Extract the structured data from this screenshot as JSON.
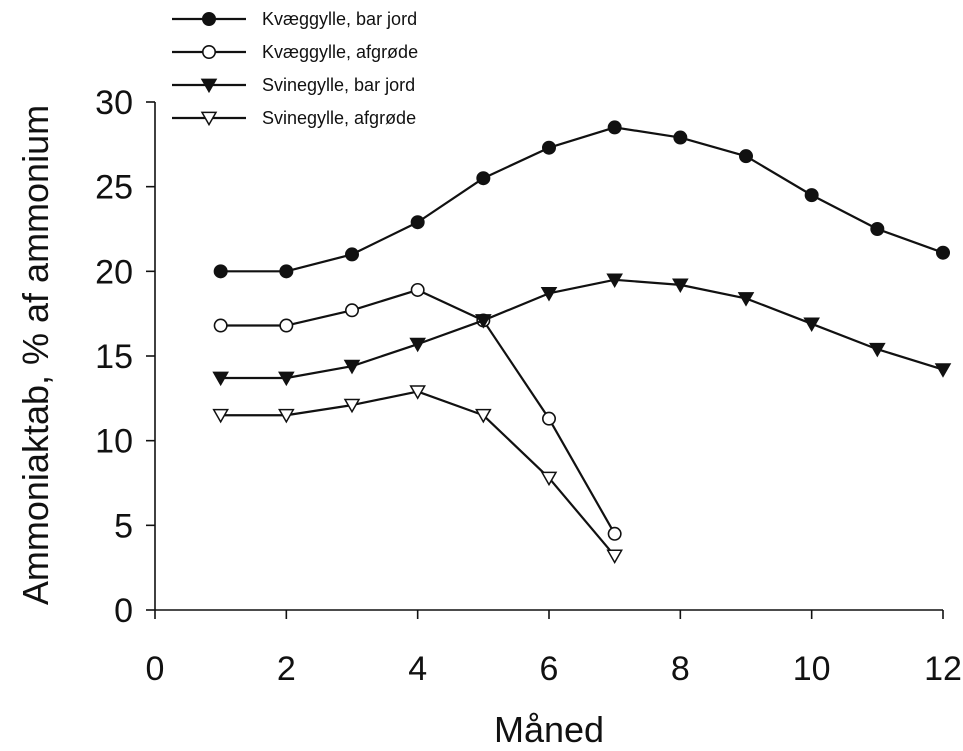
{
  "chart_data": {
    "type": "line",
    "xlabel": "Måned",
    "ylabel": "Ammoniaktab, % af ammonium",
    "xlim": [
      0,
      12
    ],
    "ylim": [
      0,
      30
    ],
    "xticks": [
      0,
      2,
      4,
      6,
      8,
      10,
      12
    ],
    "yticks": [
      0,
      5,
      10,
      15,
      20,
      25,
      30
    ],
    "grid": false,
    "legend_position": "top-left",
    "series": [
      {
        "name": "Kvæggylle, bar jord",
        "marker": "filled-circle",
        "x": [
          1,
          2,
          3,
          4,
          5,
          6,
          7,
          8,
          9,
          10,
          11,
          12
        ],
        "values": [
          20.0,
          20.0,
          21.0,
          22.9,
          25.5,
          27.3,
          28.5,
          27.9,
          26.8,
          24.5,
          22.5,
          21.1
        ]
      },
      {
        "name": "Kvæggylle, afgrøde",
        "marker": "open-circle",
        "x": [
          1,
          2,
          3,
          4,
          5,
          6,
          7
        ],
        "values": [
          16.8,
          16.8,
          17.7,
          18.9,
          17.1,
          11.3,
          4.5
        ]
      },
      {
        "name": "Svinegylle, bar jord",
        "marker": "filled-triangle-down",
        "x": [
          1,
          2,
          3,
          4,
          5,
          6,
          7,
          8,
          9,
          10,
          11,
          12
        ],
        "values": [
          13.7,
          13.7,
          14.4,
          15.7,
          17.1,
          18.7,
          19.5,
          19.2,
          18.4,
          16.9,
          15.4,
          14.2
        ]
      },
      {
        "name": "Svinegylle, afgrøde",
        "marker": "open-triangle-down",
        "x": [
          1,
          2,
          3,
          4,
          5,
          6,
          7
        ],
        "values": [
          11.5,
          11.5,
          12.1,
          12.9,
          11.5,
          7.8,
          3.2
        ]
      }
    ]
  }
}
